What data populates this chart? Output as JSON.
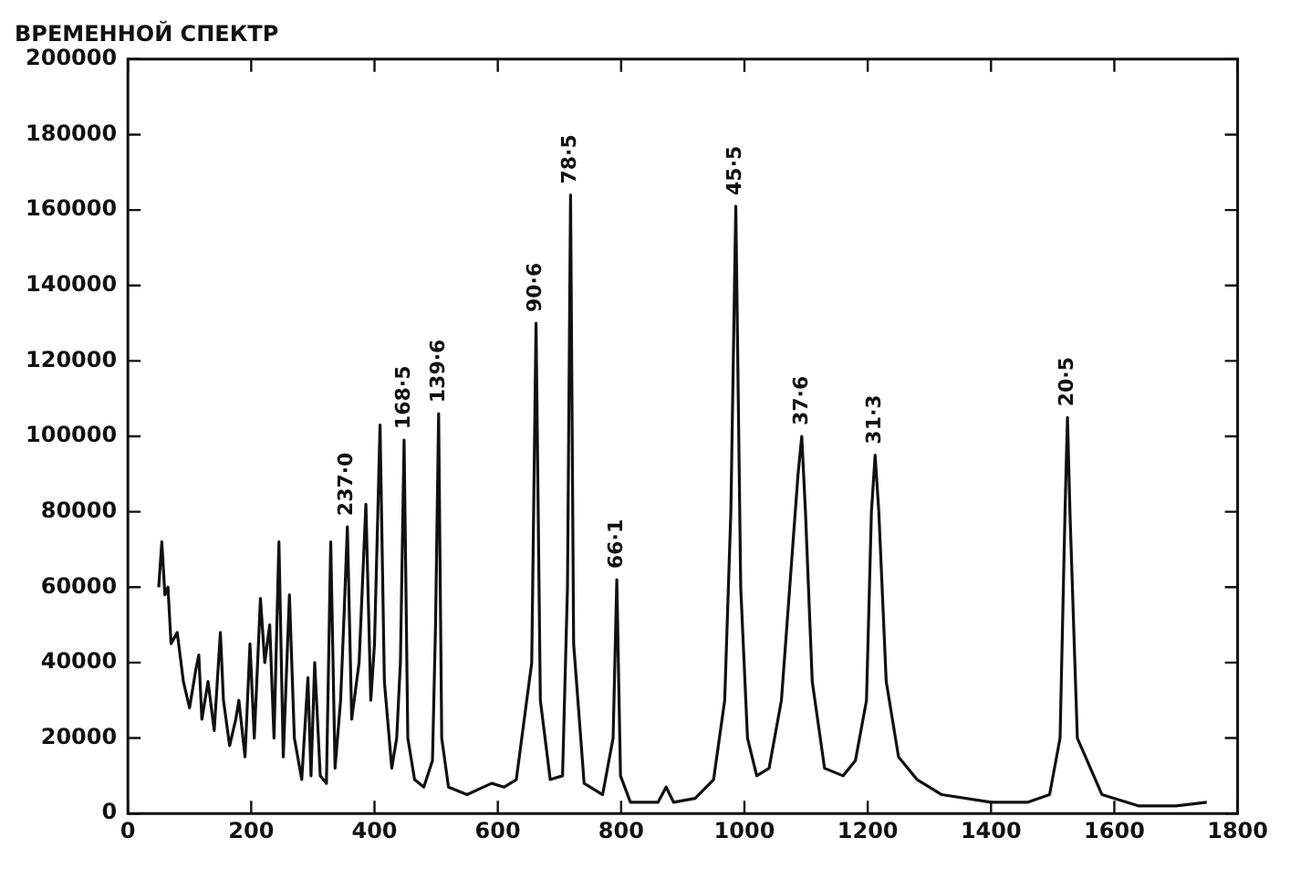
{
  "chart_data": {
    "type": "line",
    "title": "ВРЕМЕННОЙ СПЕКТР",
    "x": [
      50,
      55,
      60,
      65,
      70,
      80,
      90,
      100,
      110,
      115,
      120,
      130,
      140,
      150,
      155,
      165,
      175,
      180,
      190,
      198,
      205,
      215,
      222,
      230,
      237,
      245,
      252,
      262,
      270,
      282,
      292,
      297,
      303,
      312,
      322,
      329,
      336,
      345,
      350,
      356,
      363,
      375,
      386,
      394,
      400,
      409,
      416,
      428,
      436,
      442,
      448,
      454,
      465,
      480,
      494,
      499,
      504,
      509,
      520,
      550,
      590,
      610,
      630,
      655,
      662,
      669,
      685,
      705,
      713,
      718,
      723,
      740,
      770,
      787,
      793,
      799,
      815,
      860,
      873,
      885,
      920,
      950,
      968,
      978,
      986,
      994,
      1005,
      1020,
      1040,
      1060,
      1078,
      1087,
      1093,
      1099,
      1110,
      1130,
      1160,
      1180,
      1198,
      1206,
      1212,
      1218,
      1230,
      1250,
      1280,
      1320,
      1400,
      1460,
      1495,
      1512,
      1520,
      1524,
      1528,
      1540,
      1580,
      1640,
      1700,
      1750
    ],
    "series": [
      {
        "color": "#111111",
        "values": [
          60000,
          72000,
          58000,
          60000,
          45000,
          48000,
          35000,
          28000,
          38000,
          42000,
          25000,
          35000,
          22000,
          48000,
          30000,
          18000,
          25000,
          30000,
          15000,
          45000,
          20000,
          57000,
          40000,
          50000,
          20000,
          72000,
          15000,
          58000,
          20000,
          9000,
          36000,
          10000,
          40000,
          10000,
          8000,
          72000,
          12000,
          30000,
          50000,
          76000,
          25000,
          40000,
          82000,
          30000,
          45000,
          103000,
          35000,
          12000,
          20000,
          40000,
          99000,
          20000,
          9000,
          7000,
          14000,
          50000,
          106000,
          20000,
          7000,
          5000,
          8000,
          7000,
          9000,
          40000,
          130000,
          30000,
          9000,
          10000,
          60000,
          164000,
          45000,
          8000,
          5000,
          20000,
          62000,
          10000,
          3000,
          3000,
          7000,
          3000,
          4000,
          9000,
          30000,
          80000,
          161000,
          60000,
          20000,
          10000,
          12000,
          30000,
          70000,
          90000,
          100000,
          80000,
          35000,
          12000,
          10000,
          14000,
          30000,
          80000,
          95000,
          80000,
          35000,
          15000,
          9000,
          5000,
          3000,
          3000,
          5000,
          20000,
          80000,
          105000,
          80000,
          20000,
          5000,
          2000,
          2000,
          3000
        ]
      }
    ],
    "xlim": [
      0,
      1800
    ],
    "ylim": [
      0,
      200000
    ],
    "xticks": [
      0,
      200,
      400,
      600,
      800,
      1000,
      1200,
      1400,
      1600,
      1800
    ],
    "yticks": [
      0,
      20000,
      40000,
      60000,
      80000,
      100000,
      120000,
      140000,
      160000,
      180000,
      200000
    ],
    "marker": "none",
    "line_style": "solid",
    "legend": false,
    "grid": false,
    "annotations": [
      {
        "text": "237·0",
        "x": 356,
        "y": 76000
      },
      {
        "text": "168·5",
        "x": 448,
        "y": 99000
      },
      {
        "text": "139·6",
        "x": 504,
        "y": 106000
      },
      {
        "text": "90·6",
        "x": 662,
        "y": 130000
      },
      {
        "text": "78·5",
        "x": 718,
        "y": 164000
      },
      {
        "text": "66·1",
        "x": 793,
        "y": 62000
      },
      {
        "text": "45·5",
        "x": 986,
        "y": 161000
      },
      {
        "text": "37·6",
        "x": 1093,
        "y": 100000
      },
      {
        "text": "31·3",
        "x": 1212,
        "y": 95000
      },
      {
        "text": "20·5",
        "x": 1524,
        "y": 105000
      }
    ]
  }
}
